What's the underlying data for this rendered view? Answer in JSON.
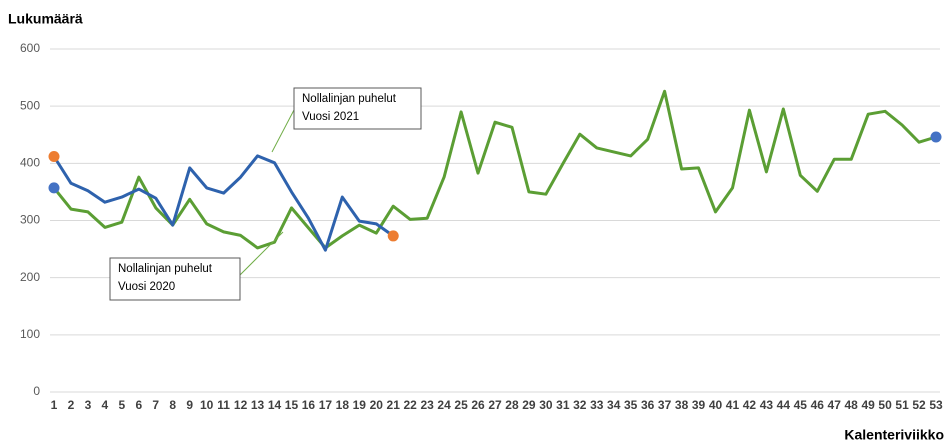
{
  "chart_data": {
    "type": "line",
    "y_label": "Lukumäärä",
    "x_label": "Kalenteriviikko",
    "categories": [
      1,
      2,
      3,
      4,
      5,
      6,
      7,
      8,
      9,
      10,
      11,
      12,
      13,
      14,
      15,
      16,
      17,
      18,
      19,
      20,
      21,
      22,
      23,
      24,
      25,
      26,
      27,
      28,
      29,
      30,
      31,
      32,
      33,
      34,
      35,
      36,
      37,
      38,
      39,
      40,
      41,
      42,
      43,
      44,
      45,
      46,
      47,
      48,
      49,
      50,
      51,
      52,
      53
    ],
    "ylim": [
      0,
      600
    ],
    "yticks": [
      0,
      100,
      200,
      300,
      400,
      500,
      600
    ],
    "grid": true,
    "series": [
      {
        "name": "Vuosi 2020",
        "color": "#5b9e34",
        "end_marker_color": "#4472c4",
        "values": [
          357,
          320,
          315,
          288,
          297,
          376,
          322,
          292,
          337,
          294,
          280,
          274,
          252,
          262,
          322,
          287,
          252,
          273,
          292,
          278,
          325,
          302,
          304,
          376,
          490,
          383,
          472,
          463,
          350,
          346,
          399,
          451,
          427,
          420,
          413,
          442,
          526,
          390,
          392,
          315,
          357,
          493,
          385,
          495,
          379,
          351,
          407,
          407,
          486,
          491,
          467,
          437,
          446
        ]
      },
      {
        "name": "Vuosi 2021",
        "color": "#2e62ad",
        "end_marker_color": "#ed7d31",
        "values": [
          412,
          365,
          352,
          332,
          341,
          355,
          339,
          292,
          392,
          357,
          348,
          376,
          413,
          401,
          350,
          304,
          248,
          341,
          299,
          294,
          273,
          null,
          null,
          null,
          null,
          null,
          null,
          null,
          null,
          null,
          null,
          null,
          null,
          null,
          null,
          null,
          null,
          null,
          null,
          null,
          null,
          null,
          null,
          null,
          null,
          null,
          null,
          null,
          null,
          null,
          null,
          null,
          null
        ]
      }
    ],
    "annotations": [
      {
        "series": 1,
        "lines": [
          "Nollalinjan puhelut",
          "Vuosi 2021"
        ]
      },
      {
        "series": 0,
        "lines": [
          "Nollalinjan puhelut",
          "Vuosi 2020"
        ]
      }
    ]
  }
}
